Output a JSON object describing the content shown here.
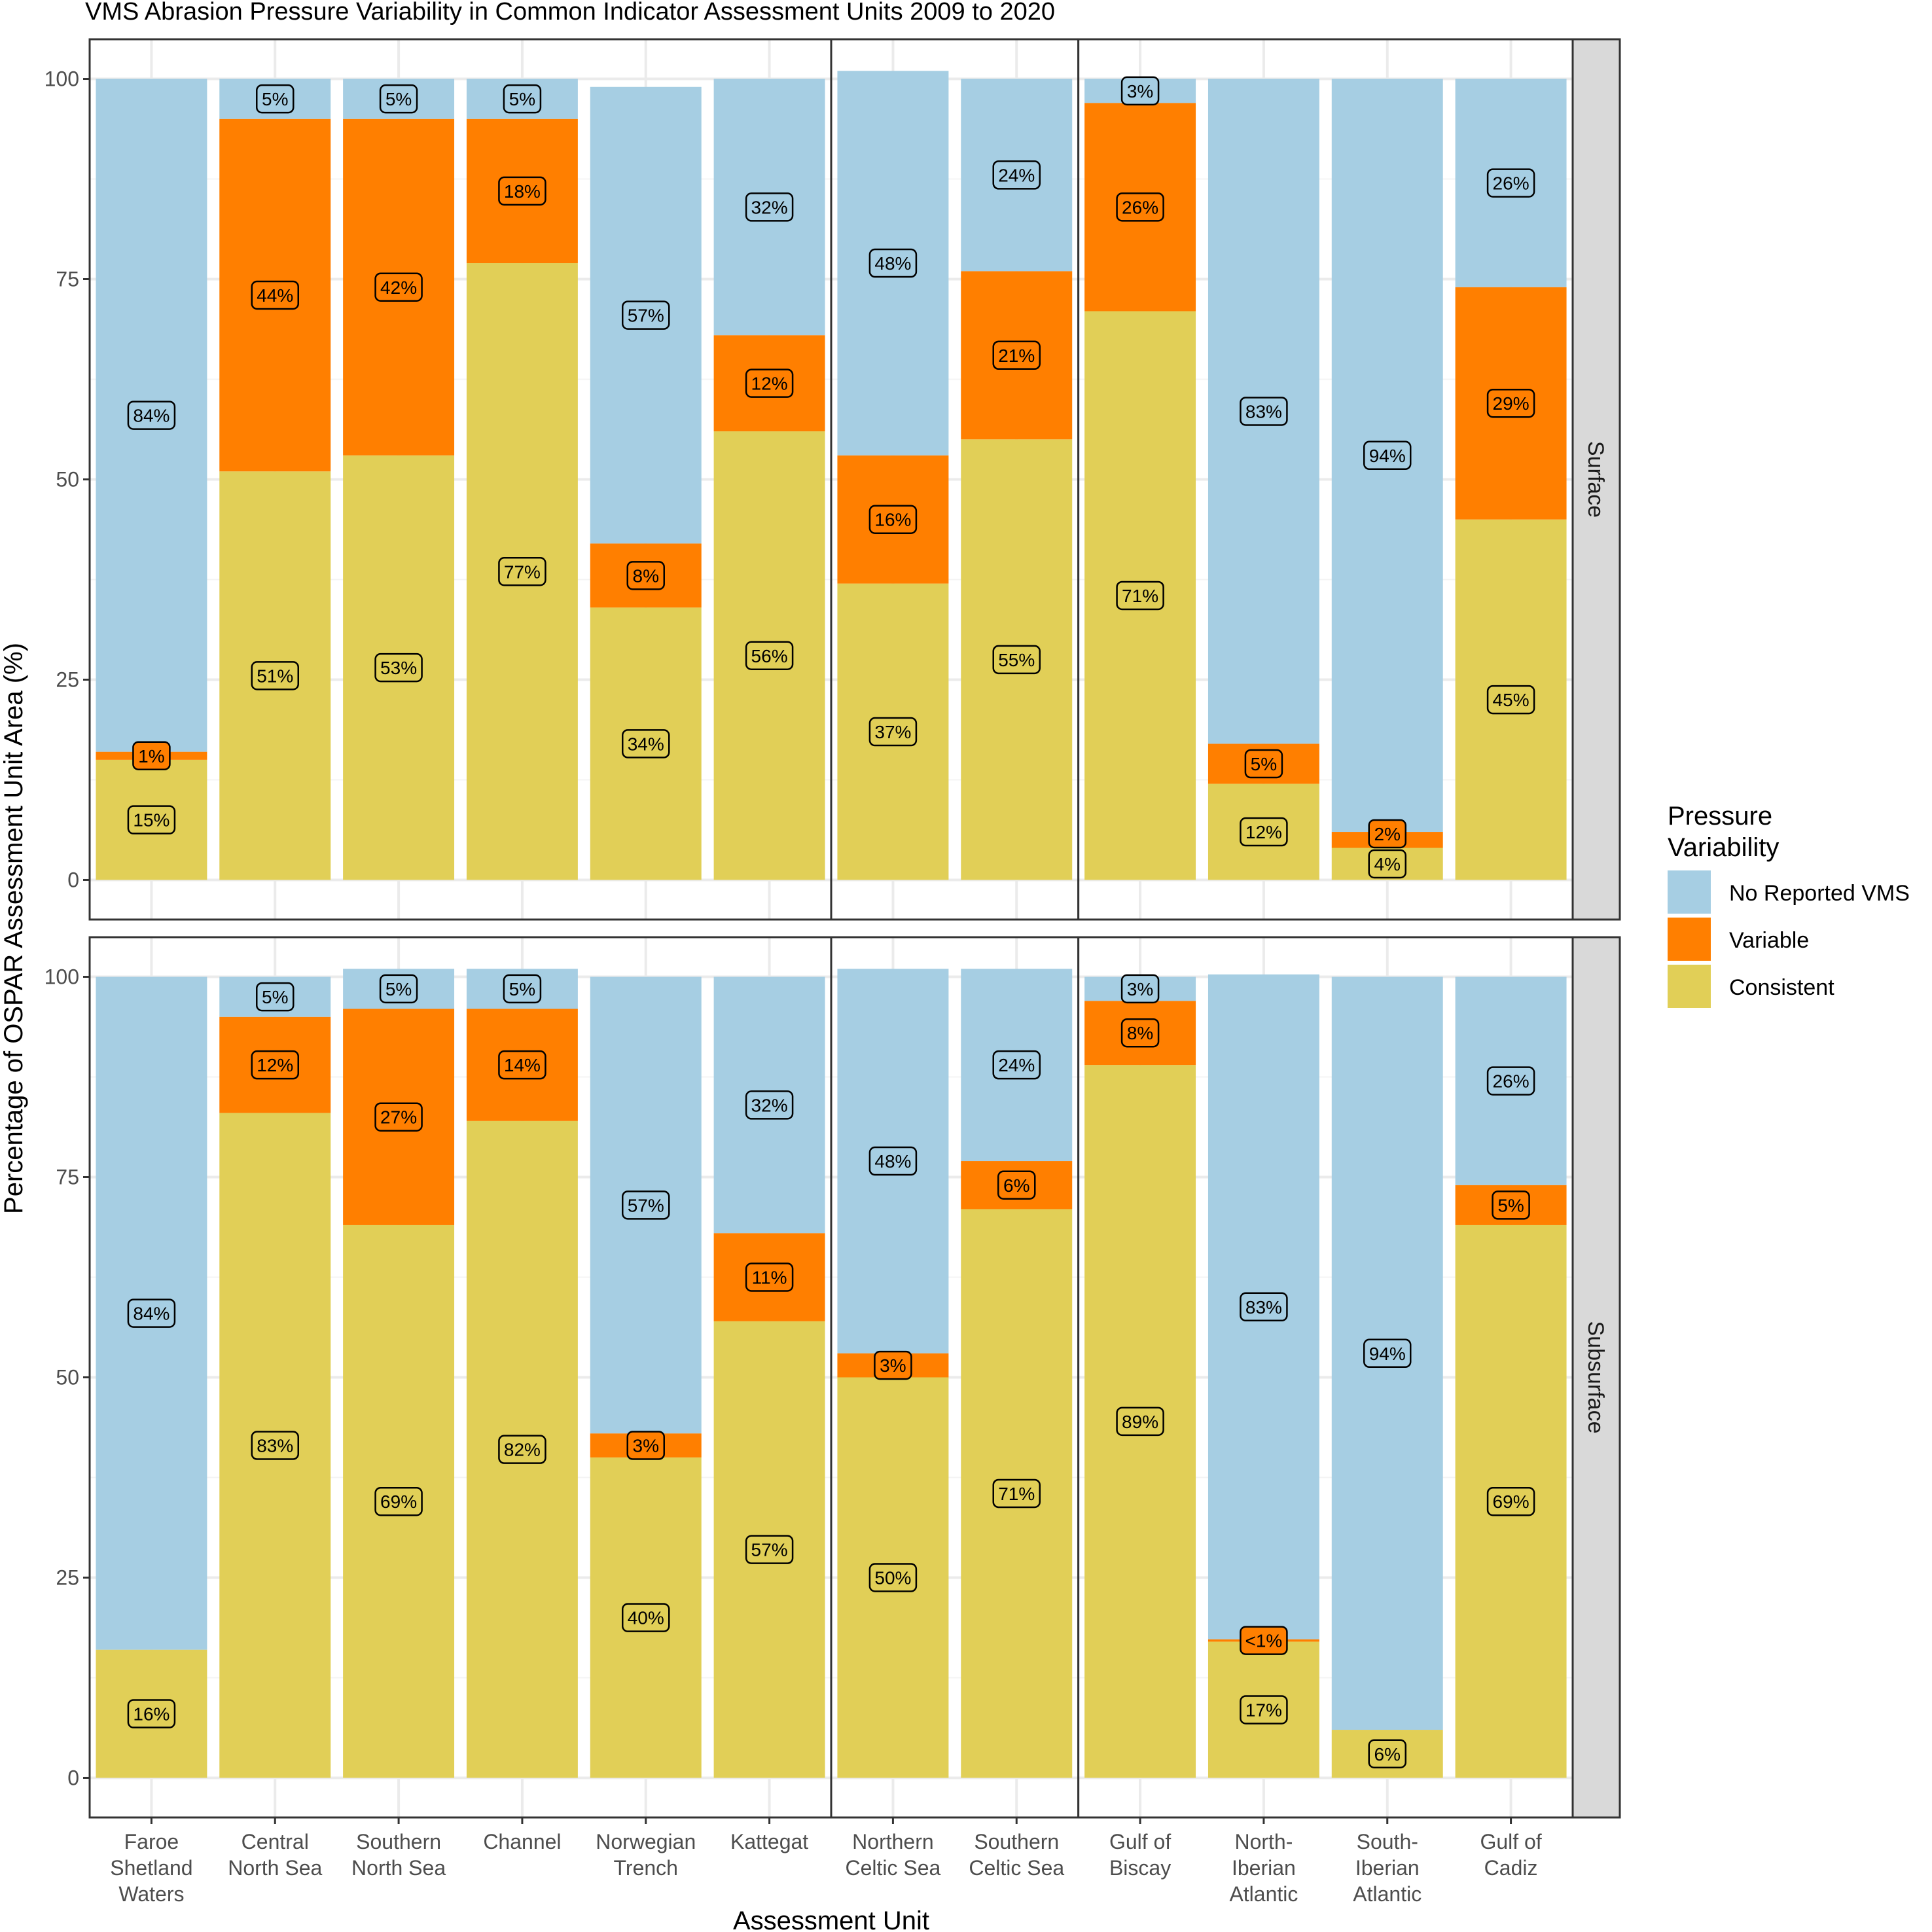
{
  "chart_data": {
    "type": "bar",
    "stacked": true,
    "title": "VMS Abrasion Pressure Variability in Common Indicator Assessment Units 2009 to 2020",
    "xlabel": "Assessment Unit",
    "ylabel": "Percentage of OSPAR Assessment Unit Area (%)",
    "ylim": [
      0,
      100
    ],
    "yticks": [
      0,
      25,
      50,
      75,
      100
    ],
    "grid": true,
    "legend": {
      "title": "Pressure Variability",
      "position": "right",
      "entries": [
        {
          "name": "No Reported VMS",
          "color": "#A6CEE3"
        },
        {
          "name": "Variable",
          "color": "#FF7F00"
        },
        {
          "name": "Consistent",
          "color": "#E1CF57"
        }
      ]
    },
    "column_groups": [
      [
        "Faroe Shetland Waters",
        "Central North Sea",
        "Southern North Sea",
        "Channel",
        "Norwegian Trench",
        "Kattegat"
      ],
      [
        "Northern Celtic Sea",
        "Southern Celtic Sea"
      ],
      [
        "Gulf of Biscay",
        "North-Iberian Atlantic",
        "South-Iberian Atlantic",
        "Gulf of Cadiz"
      ]
    ],
    "categories": [
      "Faroe Shetland Waters",
      "Central North Sea",
      "Southern North Sea",
      "Channel",
      "Norwegian Trench",
      "Kattegat",
      "Northern Celtic Sea",
      "Southern Celtic Sea",
      "Gulf of Biscay",
      "North-Iberian Atlantic",
      "South-Iberian Atlantic",
      "Gulf of Cadiz"
    ],
    "category_lines": [
      [
        "Faroe",
        "Shetland",
        "Waters"
      ],
      [
        "Central",
        "North Sea"
      ],
      [
        "Southern",
        "North Sea"
      ],
      [
        "Channel"
      ],
      [
        "Norwegian",
        "Trench"
      ],
      [
        "Kattegat"
      ],
      [
        "Northern",
        "Celtic Sea"
      ],
      [
        "Southern",
        "Celtic Sea"
      ],
      [
        "Gulf of",
        "Biscay"
      ],
      [
        "North-",
        "Iberian",
        "Atlantic"
      ],
      [
        "South-",
        "Iberian",
        "Atlantic"
      ],
      [
        "Gulf of",
        "Cadiz"
      ]
    ],
    "panels": [
      {
        "name": "Surface",
        "series": [
          {
            "name": "Consistent",
            "values": [
              15,
              51,
              53,
              77,
              34,
              56,
              37,
              55,
              71,
              12,
              4,
              45
            ],
            "labels": [
              "15%",
              "51%",
              "53%",
              "77%",
              "34%",
              "56%",
              "37%",
              "55%",
              "71%",
              "12%",
              "4%",
              "45%"
            ]
          },
          {
            "name": "Variable",
            "values": [
              1,
              44,
              42,
              18,
              8,
              12,
              16,
              21,
              26,
              5,
              2,
              29
            ],
            "labels": [
              "1%",
              "44%",
              "42%",
              "18%",
              "8%",
              "12%",
              "16%",
              "21%",
              "26%",
              "5%",
              "2%",
              "29%"
            ]
          },
          {
            "name": "No Reported VMS",
            "values": [
              84,
              5,
              5,
              5,
              57,
              32,
              48,
              24,
              3,
              83,
              94,
              26
            ],
            "labels": [
              "84%",
              "5%",
              "5%",
              "5%",
              "57%",
              "32%",
              "48%",
              "24%",
              "3%",
              "83%",
              "94%",
              "26%"
            ]
          }
        ]
      },
      {
        "name": "Subsurface",
        "series": [
          {
            "name": "Consistent",
            "values": [
              16,
              83,
              69,
              82,
              40,
              57,
              50,
              71,
              89,
              17,
              6,
              69
            ],
            "labels": [
              "16%",
              "83%",
              "69%",
              "82%",
              "40%",
              "57%",
              "50%",
              "71%",
              "89%",
              "17%",
              "6%",
              "69%"
            ]
          },
          {
            "name": "Variable",
            "values": [
              0,
              12,
              27,
              14,
              3,
              11,
              3,
              6,
              8,
              0.3,
              0,
              5
            ],
            "labels": [
              "",
              "12%",
              "27%",
              "14%",
              "3%",
              "11%",
              "3%",
              "6%",
              "8%",
              "<1%",
              "",
              "5%"
            ]
          },
          {
            "name": "No Reported VMS",
            "values": [
              84,
              5,
              5,
              5,
              57,
              32,
              48,
              24,
              3,
              83,
              94,
              26
            ],
            "labels": [
              "84%",
              "5%",
              "5%",
              "5%",
              "57%",
              "32%",
              "48%",
              "24%",
              "3%",
              "83%",
              "94%",
              "26%"
            ]
          }
        ]
      }
    ]
  }
}
